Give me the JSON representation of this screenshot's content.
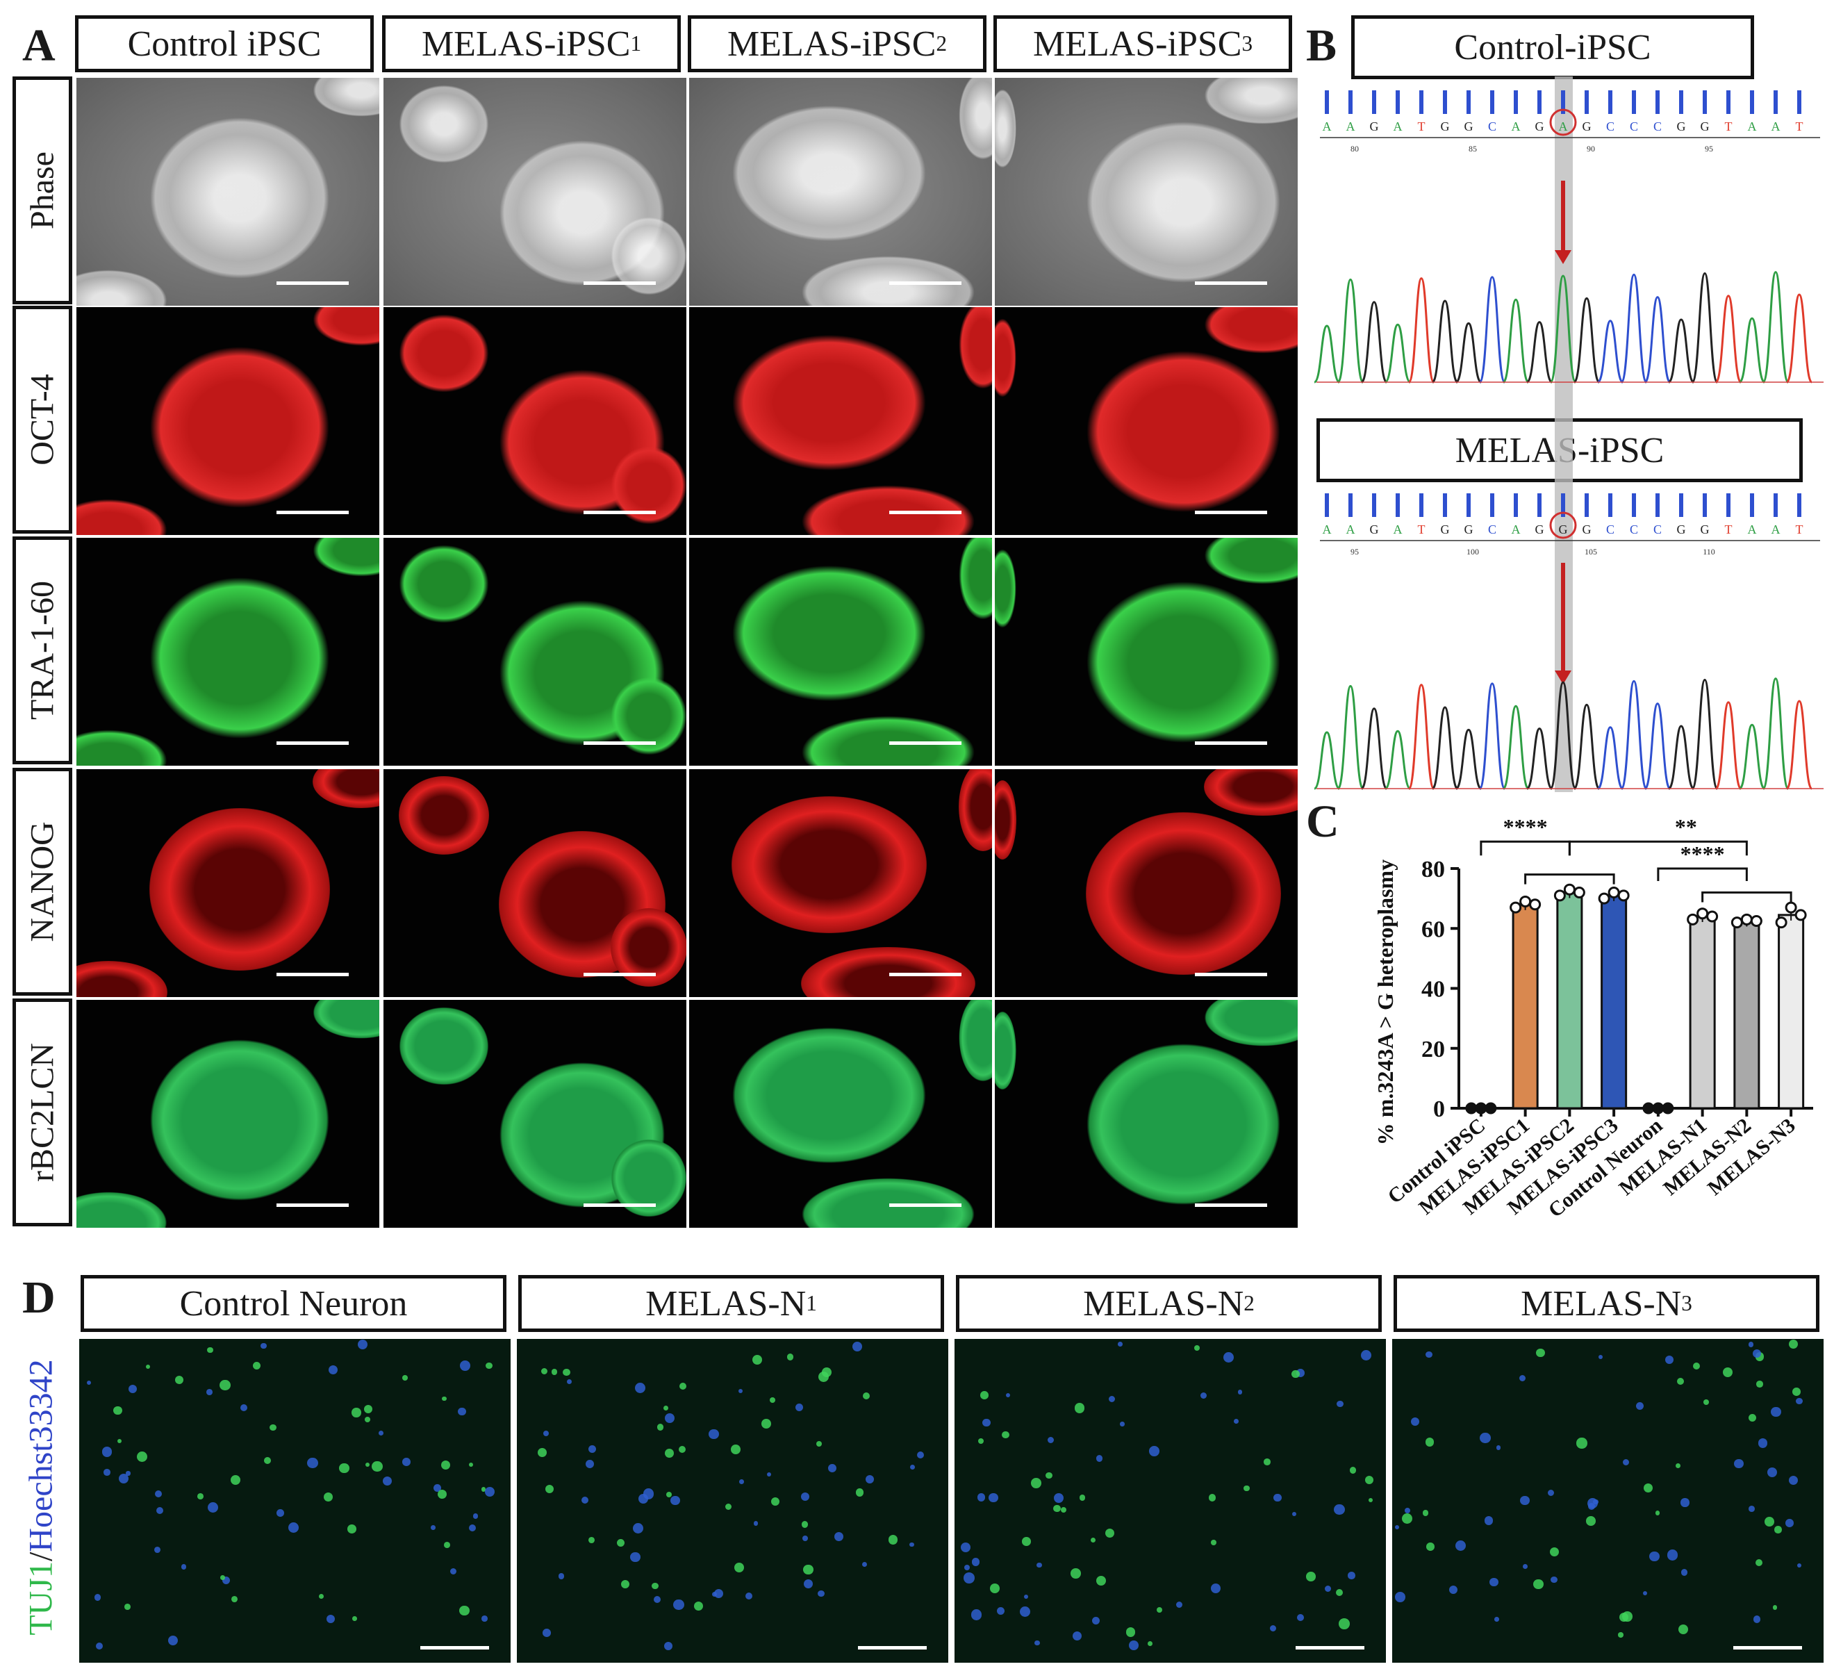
{
  "panel_letters": {
    "a": "A",
    "b": "B",
    "c": "C",
    "d": "D"
  },
  "panel_a": {
    "columns": [
      {
        "base": "Control iPSC",
        "sup": ""
      },
      {
        "base": "MELAS-iPSC",
        "sup": "1"
      },
      {
        "base": "MELAS-iPSC",
        "sup": "2"
      },
      {
        "base": "MELAS-iPSC",
        "sup": "3"
      }
    ],
    "rows": [
      "Phase",
      "OCT-4",
      "TRA-1-60",
      "NANOG",
      "rBC2LCN"
    ]
  },
  "panel_b": {
    "top_title": "Control-iPSC",
    "bottom_title": "MELAS-iPSC",
    "top_sequence": [
      "A",
      "A",
      "G",
      "A",
      "T",
      "G",
      "G",
      "C",
      "A",
      "G",
      "A",
      "G",
      "C",
      "C",
      "C",
      "G",
      "G",
      "T",
      "A",
      "A",
      "T"
    ],
    "bottom_sequence": [
      "A",
      "A",
      "G",
      "A",
      "T",
      "G",
      "G",
      "C",
      "A",
      "G",
      "G",
      "G",
      "C",
      "C",
      "C",
      "G",
      "G",
      "T",
      "A",
      "A",
      "T"
    ],
    "top_positions": [
      "80",
      "85",
      "90",
      "95"
    ],
    "bottom_positions": [
      "95",
      "100",
      "105",
      "110"
    ],
    "base_colors": {
      "A": "#2e9e44",
      "G": "#222222",
      "C": "#2e4fcf",
      "T": "#e03a2a"
    }
  },
  "chart_data": {
    "type": "bar",
    "ylabel": "% m.3243A > G heteroplasmy",
    "ylim": [
      0,
      80
    ],
    "yticks": [
      0,
      20,
      40,
      60,
      80
    ],
    "categories": [
      "Control iPSC",
      "MELAS-iPSC1",
      "MELAS-iPSC2",
      "MELAS-iPSC3",
      "Control Neuron",
      "MELAS-N1",
      "MELAS-N2",
      "MELAS-N3"
    ],
    "values": [
      0,
      68,
      72,
      71,
      0,
      64,
      62.5,
      64.5
    ],
    "points": [
      [
        0,
        0,
        0
      ],
      [
        67,
        69,
        68
      ],
      [
        71,
        73,
        72
      ],
      [
        70,
        72,
        71
      ],
      [
        0,
        0,
        0
      ],
      [
        63,
        65,
        64
      ],
      [
        62,
        63,
        62.5
      ],
      [
        62,
        67,
        64.5
      ]
    ],
    "bar_colors": [
      "#ffffff",
      "#d9884f",
      "#7cc29a",
      "#2e56b5",
      "#ffffff",
      "#cfcfcf",
      "#a9a9a9",
      "#ececec"
    ],
    "significance": [
      {
        "label": "****",
        "from": 0,
        "to": [
          1,
          3
        ]
      },
      {
        "label": "**",
        "from": 2,
        "to": [
          5,
          7
        ]
      },
      {
        "label": "****",
        "from": 4,
        "to": [
          5,
          7
        ]
      }
    ]
  },
  "panel_d": {
    "stain_label_1": "TUJ1",
    "stain_label_sep": "/",
    "stain_label_2": "Hoechst33342",
    "columns": [
      {
        "base": "Control Neuron",
        "sup": ""
      },
      {
        "base": "MELAS-N",
        "sup": "1"
      },
      {
        "base": "MELAS-N",
        "sup": "2"
      },
      {
        "base": "MELAS-N",
        "sup": "3"
      }
    ]
  }
}
